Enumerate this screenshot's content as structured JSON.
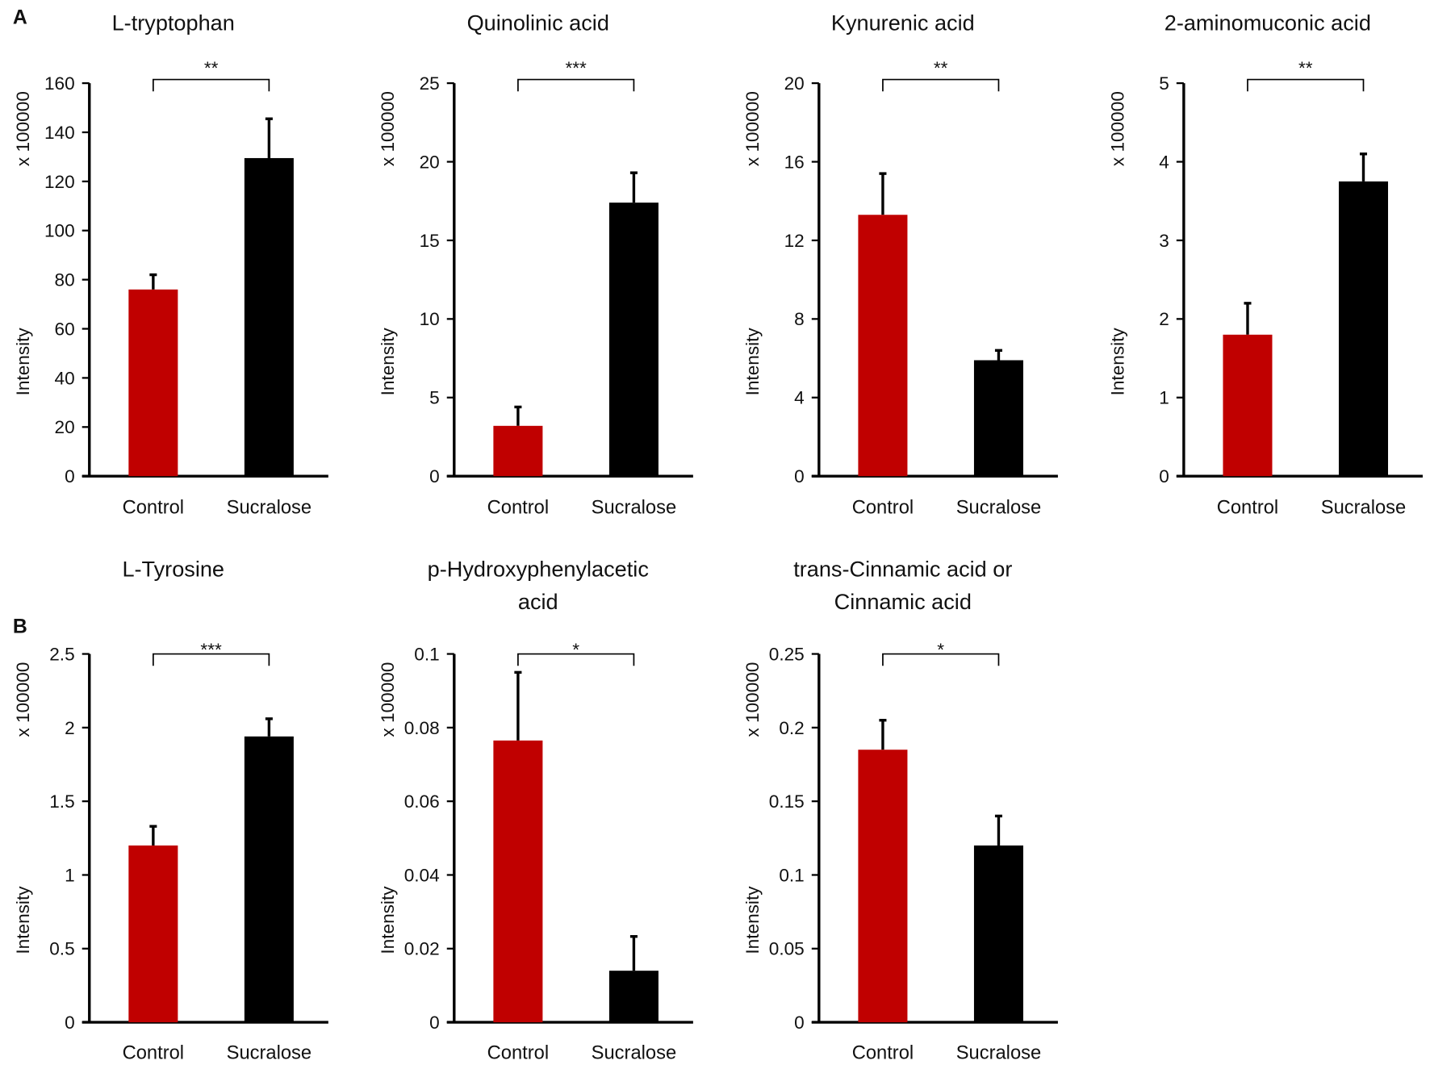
{
  "panel_labels": [
    "A",
    "B"
  ],
  "colors": {
    "control": "#c00000",
    "sucralose": "#000000"
  },
  "chart_data": [
    {
      "type": "bar",
      "panel": "A",
      "title": [
        "L-tryptophan"
      ],
      "ylabel": "Intensity",
      "yunit": "x 100000",
      "categories": [
        "Control",
        "Sucralose"
      ],
      "values": [
        76,
        129.5
      ],
      "errors": [
        6,
        16
      ],
      "ylim": [
        0,
        160
      ],
      "yticks": [
        0,
        20,
        40,
        60,
        80,
        100,
        120,
        140,
        160
      ],
      "significance": "**"
    },
    {
      "type": "bar",
      "panel": "A",
      "title": [
        "Quinolinic acid"
      ],
      "ylabel": "Intensity",
      "yunit": "x 100000",
      "categories": [
        "Control",
        "Sucralose"
      ],
      "values": [
        3.2,
        17.4
      ],
      "errors": [
        1.2,
        1.9
      ],
      "ylim": [
        0,
        25
      ],
      "yticks": [
        0,
        5,
        10,
        15,
        20,
        25
      ],
      "significance": "***"
    },
    {
      "type": "bar",
      "panel": "A",
      "title": [
        "Kynurenic acid"
      ],
      "ylabel": "Intensity",
      "yunit": "x 100000",
      "categories": [
        "Control",
        "Sucralose"
      ],
      "values": [
        13.3,
        5.9
      ],
      "errors": [
        2.1,
        0.5
      ],
      "ylim": [
        0,
        20
      ],
      "yticks": [
        0,
        4,
        8,
        12,
        16,
        20
      ],
      "significance": "**"
    },
    {
      "type": "bar",
      "panel": "A",
      "title": [
        "2-aminomuconic acid"
      ],
      "ylabel": "Intensity",
      "yunit": "x 100000",
      "categories": [
        "Control",
        "Sucralose"
      ],
      "values": [
        1.8,
        3.75
      ],
      "errors": [
        0.4,
        0.35
      ],
      "ylim": [
        0,
        5
      ],
      "yticks": [
        0,
        1,
        2,
        3,
        4,
        5
      ],
      "significance": "**"
    },
    {
      "type": "bar",
      "panel": "B",
      "title": [
        "L-Tyrosine"
      ],
      "ylabel": "Intensity",
      "yunit": "x 100000",
      "categories": [
        "Control",
        "Sucralose"
      ],
      "values": [
        1.2,
        1.94
      ],
      "errors": [
        0.13,
        0.12
      ],
      "ylim": [
        0,
        2.5
      ],
      "yticks": [
        "0",
        "0.5",
        "1",
        "1.5",
        "2",
        "2.5"
      ],
      "significance": "***"
    },
    {
      "type": "bar",
      "panel": "B",
      "title": [
        "p-Hydroxyphenylacetic",
        "acid"
      ],
      "ylabel": "Intensity",
      "yunit": "x 100000",
      "categories": [
        "Control",
        "Sucralose"
      ],
      "values": [
        0.0765,
        0.014
      ],
      "errors": [
        0.0185,
        0.0093
      ],
      "ylim": [
        0,
        0.1
      ],
      "yticks": [
        "0",
        "0.02",
        "0.04",
        "0.06",
        "0.08",
        "0.1"
      ],
      "significance": "*"
    },
    {
      "type": "bar",
      "panel": "B",
      "title": [
        "trans-Cinnamic acid or",
        "Cinnamic acid"
      ],
      "ylabel": "Intensity",
      "yunit": "x 100000",
      "categories": [
        "Control",
        "Sucralose"
      ],
      "values": [
        0.185,
        0.12
      ],
      "errors": [
        0.02,
        0.02
      ],
      "ylim": [
        0,
        0.25
      ],
      "yticks": [
        "0",
        "0.05",
        "0.1",
        "0.15",
        "0.2",
        "0.25"
      ],
      "significance": "*"
    }
  ]
}
